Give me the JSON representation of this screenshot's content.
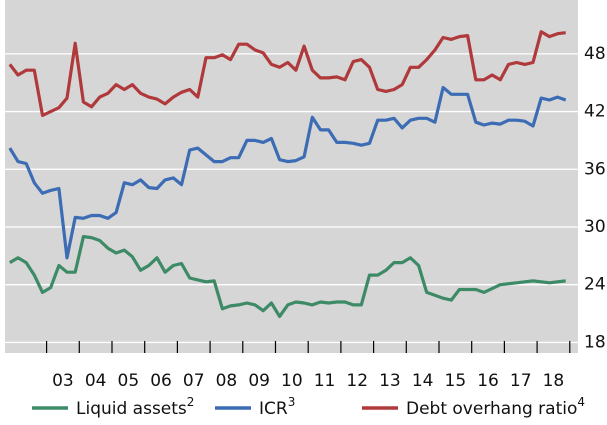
{
  "chart_data": {
    "type": "line",
    "categories": [
      null,
      null,
      null,
      null,
      null,
      null,
      "03",
      null,
      null,
      null,
      "04",
      null,
      null,
      null,
      "05",
      null,
      null,
      null,
      "06",
      null,
      null,
      null,
      "07",
      null,
      null,
      null,
      "08",
      null,
      null,
      null,
      "09",
      null,
      null,
      null,
      "10",
      null,
      null,
      null,
      "11",
      null,
      null,
      null,
      "12",
      null,
      null,
      null,
      "13",
      null,
      null,
      null,
      "14",
      null,
      null,
      null,
      "15",
      null,
      null,
      null,
      "16",
      null,
      null,
      null,
      "17",
      null,
      null,
      null,
      "18",
      null,
      null
    ],
    "series": [
      {
        "name": "Liquid assets",
        "footnote": "2",
        "color": "#3d8a66",
        "values": [
          26.3,
          26.8,
          26.3,
          25.0,
          23.2,
          23.7,
          26.0,
          25.3,
          25.3,
          29.0,
          28.9,
          28.6,
          27.8,
          27.3,
          27.6,
          26.9,
          25.5,
          26.0,
          26.8,
          25.3,
          26.0,
          26.2,
          24.7,
          24.5,
          24.3,
          24.4,
          21.5,
          21.8,
          21.9,
          22.1,
          21.9,
          21.3,
          22.1,
          20.7,
          21.9,
          22.2,
          22.1,
          21.9,
          22.2,
          22.1,
          22.2,
          22.2,
          21.9,
          21.9,
          25.0,
          25.0,
          25.5,
          26.3,
          26.3,
          26.8,
          26.0,
          23.2,
          22.9,
          22.6,
          22.4,
          23.5,
          23.5,
          23.5,
          23.2,
          23.6,
          24.0,
          24.1,
          24.2,
          24.3,
          24.4,
          24.3,
          24.2,
          24.3,
          24.4
        ]
      },
      {
        "name": "ICR",
        "footnote": "3",
        "color": "#3b6cb4",
        "values": [
          38.2,
          36.8,
          36.6,
          34.6,
          33.5,
          33.8,
          34.0,
          26.8,
          31.0,
          30.9,
          31.2,
          31.2,
          30.9,
          31.5,
          34.6,
          34.4,
          34.9,
          34.1,
          34.0,
          34.9,
          35.1,
          34.4,
          38.0,
          38.2,
          37.5,
          36.8,
          36.8,
          37.2,
          37.2,
          39.0,
          39.0,
          38.8,
          39.2,
          37.0,
          36.8,
          36.9,
          37.3,
          41.4,
          40.1,
          40.1,
          38.8,
          38.8,
          38.7,
          38.5,
          38.7,
          41.1,
          41.1,
          41.3,
          40.3,
          41.1,
          41.3,
          41.3,
          40.9,
          44.5,
          43.8,
          43.8,
          43.8,
          40.9,
          40.6,
          40.8,
          40.7,
          41.1,
          41.1,
          41.0,
          40.5,
          43.4,
          43.2,
          43.5,
          43.2
        ]
      },
      {
        "name": "Debt overhang ratio",
        "footnote": "4",
        "color": "#b0393b",
        "values": [
          46.9,
          45.8,
          46.3,
          46.3,
          41.6,
          42.0,
          42.4,
          43.4,
          49.1,
          43.0,
          42.5,
          43.5,
          43.9,
          44.8,
          44.3,
          44.8,
          43.9,
          43.5,
          43.3,
          42.8,
          43.5,
          44.0,
          44.3,
          43.5,
          47.6,
          47.6,
          47.9,
          47.4,
          49.0,
          49.0,
          48.4,
          48.1,
          46.9,
          46.6,
          47.1,
          46.3,
          48.8,
          46.3,
          45.5,
          45.5,
          45.6,
          45.3,
          47.2,
          47.4,
          46.6,
          44.3,
          44.1,
          44.3,
          44.8,
          46.6,
          46.6,
          47.4,
          48.4,
          49.7,
          49.5,
          49.8,
          49.9,
          45.3,
          45.3,
          45.8,
          45.3,
          46.9,
          47.1,
          46.9,
          47.1,
          50.3,
          49.8,
          50.1,
          50.2
        ]
      }
    ],
    "ylim": [
      16.9,
      53.6
    ],
    "yticks": [
      18,
      24,
      30,
      36,
      42,
      48
    ],
    "grid": true,
    "background": "#d6d6d6"
  }
}
